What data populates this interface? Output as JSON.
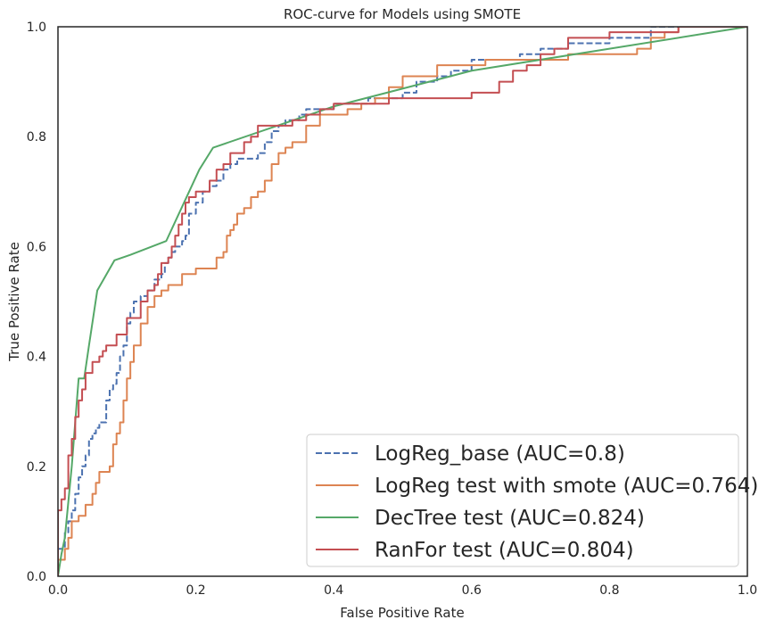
{
  "chart_data": {
    "type": "line",
    "title": "ROC-curve for Models using SMOTE",
    "xlabel": "False Positive Rate",
    "ylabel": "True Positive Rate",
    "xlim": [
      0,
      1
    ],
    "ylim": [
      0,
      1
    ],
    "xticks": [
      "0.0",
      "0.2",
      "0.4",
      "0.6",
      "0.8",
      "1.0"
    ],
    "yticks": [
      "0.0",
      "0.2",
      "0.4",
      "0.6",
      "0.8",
      "1.0"
    ],
    "grid": false,
    "legend_position": "lower-right",
    "series": [
      {
        "name": "LogReg_base (AUC=0.8)",
        "color": "#4c72b0",
        "dash": "dashed",
        "x": [
          0.0,
          0.0,
          0.01,
          0.01,
          0.015,
          0.015,
          0.02,
          0.02,
          0.025,
          0.025,
          0.03,
          0.03,
          0.035,
          0.035,
          0.04,
          0.04,
          0.045,
          0.045,
          0.05,
          0.05,
          0.055,
          0.055,
          0.06,
          0.06,
          0.07,
          0.07,
          0.075,
          0.075,
          0.08,
          0.08,
          0.085,
          0.085,
          0.09,
          0.09,
          0.095,
          0.095,
          0.1,
          0.1,
          0.105,
          0.105,
          0.11,
          0.11,
          0.12,
          0.12,
          0.13,
          0.13,
          0.14,
          0.14,
          0.15,
          0.15,
          0.155,
          0.155,
          0.16,
          0.16,
          0.165,
          0.165,
          0.17,
          0.17,
          0.175,
          0.175,
          0.18,
          0.18,
          0.185,
          0.185,
          0.19,
          0.19,
          0.2,
          0.2,
          0.21,
          0.21,
          0.22,
          0.22,
          0.23,
          0.23,
          0.24,
          0.24,
          0.25,
          0.25,
          0.26,
          0.26,
          0.27,
          0.27,
          0.29,
          0.29,
          0.3,
          0.3,
          0.31,
          0.31,
          0.32,
          0.32,
          0.33,
          0.33,
          0.35,
          0.35,
          0.36,
          0.36,
          0.38,
          0.38,
          0.4,
          0.4,
          0.45,
          0.45,
          0.5,
          0.5,
          0.52,
          0.52,
          0.55,
          0.55,
          0.57,
          0.57,
          0.6,
          0.6,
          0.67,
          0.67,
          0.7,
          0.7,
          0.74,
          0.74,
          0.8,
          0.8,
          0.86,
          0.86,
          0.9,
          0.9,
          1.0
        ],
        "y": [
          0.0,
          0.05,
          0.05,
          0.08,
          0.08,
          0.1,
          0.1,
          0.12,
          0.12,
          0.15,
          0.15,
          0.18,
          0.18,
          0.2,
          0.2,
          0.22,
          0.22,
          0.25,
          0.25,
          0.26,
          0.26,
          0.27,
          0.27,
          0.28,
          0.28,
          0.32,
          0.32,
          0.34,
          0.34,
          0.35,
          0.35,
          0.37,
          0.37,
          0.4,
          0.4,
          0.42,
          0.42,
          0.46,
          0.46,
          0.48,
          0.48,
          0.5,
          0.5,
          0.51,
          0.51,
          0.52,
          0.52,
          0.54,
          0.54,
          0.55,
          0.55,
          0.57,
          0.57,
          0.58,
          0.58,
          0.59,
          0.59,
          0.6,
          0.6,
          0.6,
          0.6,
          0.61,
          0.61,
          0.62,
          0.62,
          0.66,
          0.66,
          0.68,
          0.68,
          0.7,
          0.7,
          0.71,
          0.71,
          0.72,
          0.72,
          0.74,
          0.74,
          0.75,
          0.75,
          0.76,
          0.76,
          0.76,
          0.76,
          0.77,
          0.77,
          0.79,
          0.79,
          0.81,
          0.81,
          0.82,
          0.82,
          0.83,
          0.83,
          0.84,
          0.84,
          0.85,
          0.85,
          0.85,
          0.85,
          0.86,
          0.86,
          0.87,
          0.87,
          0.88,
          0.88,
          0.9,
          0.9,
          0.91,
          0.91,
          0.92,
          0.92,
          0.94,
          0.94,
          0.95,
          0.95,
          0.96,
          0.96,
          0.97,
          0.97,
          0.98,
          0.98,
          1.0,
          1.0,
          1.0,
          1.0
        ]
      },
      {
        "name": "LogReg test with smote (AUC=0.764)",
        "color": "#dd8452",
        "dash": "solid",
        "x": [
          0.0,
          0.0,
          0.01,
          0.01,
          0.015,
          0.015,
          0.02,
          0.02,
          0.03,
          0.03,
          0.04,
          0.04,
          0.05,
          0.05,
          0.055,
          0.055,
          0.06,
          0.06,
          0.075,
          0.075,
          0.08,
          0.08,
          0.085,
          0.085,
          0.09,
          0.09,
          0.095,
          0.095,
          0.1,
          0.1,
          0.105,
          0.105,
          0.11,
          0.11,
          0.12,
          0.12,
          0.13,
          0.13,
          0.14,
          0.14,
          0.15,
          0.15,
          0.16,
          0.16,
          0.18,
          0.18,
          0.2,
          0.2,
          0.23,
          0.23,
          0.24,
          0.24,
          0.245,
          0.245,
          0.25,
          0.25,
          0.255,
          0.255,
          0.26,
          0.26,
          0.27,
          0.27,
          0.28,
          0.28,
          0.29,
          0.29,
          0.3,
          0.3,
          0.31,
          0.31,
          0.32,
          0.32,
          0.33,
          0.33,
          0.34,
          0.34,
          0.36,
          0.36,
          0.38,
          0.38,
          0.42,
          0.42,
          0.44,
          0.44,
          0.46,
          0.46,
          0.48,
          0.48,
          0.5,
          0.5,
          0.55,
          0.55,
          0.62,
          0.62,
          0.74,
          0.74,
          0.84,
          0.84,
          0.86,
          0.86,
          0.88,
          0.88,
          0.9,
          0.9,
          0.92,
          0.92,
          1.0
        ],
        "y": [
          0.0,
          0.03,
          0.03,
          0.05,
          0.05,
          0.07,
          0.07,
          0.1,
          0.1,
          0.11,
          0.11,
          0.13,
          0.13,
          0.15,
          0.15,
          0.17,
          0.17,
          0.19,
          0.19,
          0.2,
          0.2,
          0.24,
          0.24,
          0.26,
          0.26,
          0.28,
          0.28,
          0.32,
          0.32,
          0.36,
          0.36,
          0.39,
          0.39,
          0.42,
          0.42,
          0.46,
          0.46,
          0.49,
          0.49,
          0.51,
          0.51,
          0.52,
          0.52,
          0.53,
          0.53,
          0.55,
          0.55,
          0.56,
          0.56,
          0.58,
          0.58,
          0.59,
          0.59,
          0.62,
          0.62,
          0.63,
          0.63,
          0.64,
          0.64,
          0.66,
          0.66,
          0.67,
          0.67,
          0.69,
          0.69,
          0.7,
          0.7,
          0.72,
          0.72,
          0.75,
          0.75,
          0.77,
          0.77,
          0.78,
          0.78,
          0.79,
          0.79,
          0.82,
          0.82,
          0.84,
          0.84,
          0.85,
          0.85,
          0.86,
          0.86,
          0.87,
          0.87,
          0.89,
          0.89,
          0.91,
          0.91,
          0.93,
          0.93,
          0.94,
          0.94,
          0.95,
          0.95,
          0.96,
          0.96,
          0.98,
          0.98,
          0.99,
          0.99,
          1.0,
          1.0,
          1.0,
          1.0
        ]
      },
      {
        "name": "DecTree test (AUC=0.824)",
        "color": "#55a868",
        "dash": "solid",
        "x": [
          0.0,
          0.005,
          0.01,
          0.02,
          0.03,
          0.038,
          0.045,
          0.057,
          0.082,
          0.105,
          0.157,
          0.205,
          0.225,
          0.4,
          0.6,
          0.75,
          0.95,
          1.0
        ],
        "y": [
          0.0,
          0.04,
          0.07,
          0.2,
          0.36,
          0.36,
          0.42,
          0.52,
          0.575,
          0.585,
          0.61,
          0.74,
          0.78,
          0.855,
          0.92,
          0.95,
          0.99,
          1.0
        ]
      },
      {
        "name": "RanFor test (AUC=0.804)",
        "color": "#c44e52",
        "dash": "solid",
        "x": [
          0.0,
          0.0,
          0.005,
          0.005,
          0.01,
          0.01,
          0.015,
          0.015,
          0.02,
          0.02,
          0.025,
          0.025,
          0.03,
          0.03,
          0.035,
          0.035,
          0.04,
          0.04,
          0.05,
          0.05,
          0.06,
          0.06,
          0.065,
          0.065,
          0.07,
          0.07,
          0.085,
          0.085,
          0.1,
          0.1,
          0.12,
          0.12,
          0.13,
          0.13,
          0.14,
          0.14,
          0.145,
          0.145,
          0.15,
          0.15,
          0.16,
          0.16,
          0.165,
          0.165,
          0.17,
          0.17,
          0.175,
          0.175,
          0.18,
          0.18,
          0.185,
          0.185,
          0.19,
          0.19,
          0.2,
          0.2,
          0.22,
          0.22,
          0.23,
          0.23,
          0.24,
          0.24,
          0.25,
          0.25,
          0.27,
          0.27,
          0.28,
          0.28,
          0.29,
          0.29,
          0.3,
          0.3,
          0.34,
          0.34,
          0.36,
          0.36,
          0.38,
          0.38,
          0.4,
          0.4,
          0.48,
          0.48,
          0.52,
          0.52,
          0.6,
          0.6,
          0.64,
          0.64,
          0.66,
          0.66,
          0.68,
          0.68,
          0.7,
          0.7,
          0.72,
          0.72,
          0.74,
          0.74,
          0.8,
          0.8,
          0.9,
          0.9,
          0.93,
          0.93,
          1.0
        ],
        "y": [
          0.0,
          0.12,
          0.12,
          0.14,
          0.14,
          0.16,
          0.16,
          0.22,
          0.22,
          0.25,
          0.25,
          0.29,
          0.29,
          0.32,
          0.32,
          0.34,
          0.34,
          0.37,
          0.37,
          0.39,
          0.39,
          0.4,
          0.4,
          0.41,
          0.41,
          0.42,
          0.42,
          0.44,
          0.44,
          0.47,
          0.47,
          0.5,
          0.5,
          0.52,
          0.52,
          0.53,
          0.53,
          0.55,
          0.55,
          0.57,
          0.57,
          0.58,
          0.58,
          0.6,
          0.6,
          0.62,
          0.62,
          0.64,
          0.64,
          0.66,
          0.66,
          0.68,
          0.68,
          0.69,
          0.69,
          0.7,
          0.7,
          0.72,
          0.72,
          0.74,
          0.74,
          0.75,
          0.75,
          0.77,
          0.77,
          0.79,
          0.79,
          0.8,
          0.8,
          0.82,
          0.82,
          0.82,
          0.82,
          0.83,
          0.83,
          0.84,
          0.84,
          0.85,
          0.85,
          0.86,
          0.86,
          0.87,
          0.87,
          0.87,
          0.87,
          0.88,
          0.88,
          0.9,
          0.9,
          0.92,
          0.92,
          0.93,
          0.93,
          0.95,
          0.95,
          0.96,
          0.96,
          0.98,
          0.98,
          0.99,
          0.99,
          1.0,
          1.0,
          1.0,
          1.0
        ]
      }
    ]
  }
}
